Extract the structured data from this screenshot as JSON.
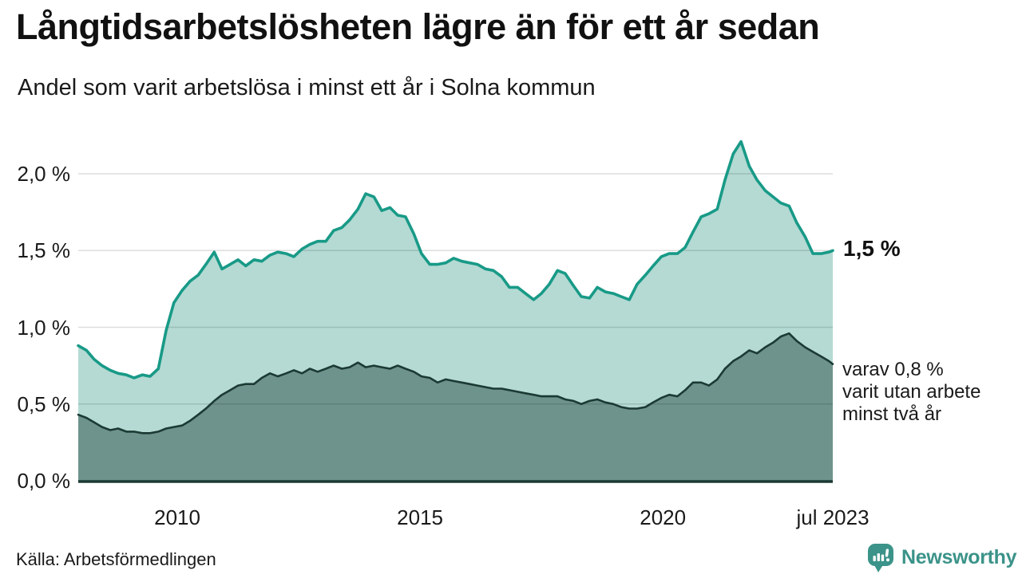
{
  "header": {
    "title": "Långtidsarbetslösheten lägre än för ett år sedan",
    "subtitle": "Andel som varit arbetslösa i minst ett år i Solna kommun"
  },
  "chart_data": {
    "type": "area",
    "title": "Långtidsarbetslösheten lägre än för ett år sedan",
    "subtitle": "Andel som varit arbetslösa i minst ett år i Solna kommun",
    "grid": "horizontal-on",
    "legend_position": "none",
    "x_axis": {
      "range": [
        2007.96,
        2023.5
      ],
      "ticks": [
        {
          "value": 2010,
          "label": "2010"
        },
        {
          "value": 2015,
          "label": "2015"
        },
        {
          "value": 2020,
          "label": "2020"
        },
        {
          "value": 2023.5,
          "label": "jul 2023"
        }
      ]
    },
    "y_axis": {
      "range": [
        0,
        2.3
      ],
      "unit": "%",
      "ticks": [
        {
          "value": 0.0,
          "label": "0,0 %"
        },
        {
          "value": 0.5,
          "label": "0,5 %"
        },
        {
          "value": 1.0,
          "label": "1,0 %"
        },
        {
          "value": 1.5,
          "label": "1,5 %"
        },
        {
          "value": 2.0,
          "label": "2,0 %"
        }
      ]
    },
    "x": [
      2007.96,
      2008.13,
      2008.29,
      2008.45,
      2008.62,
      2008.78,
      2008.95,
      2009.11,
      2009.28,
      2009.44,
      2009.61,
      2009.77,
      2009.93,
      2010.1,
      2010.26,
      2010.43,
      2010.59,
      2010.76,
      2010.92,
      2011.09,
      2011.25,
      2011.41,
      2011.58,
      2011.74,
      2011.91,
      2012.07,
      2012.24,
      2012.4,
      2012.57,
      2012.73,
      2012.89,
      2013.06,
      2013.22,
      2013.39,
      2013.55,
      2013.72,
      2013.88,
      2014.05,
      2014.21,
      2014.38,
      2014.54,
      2014.7,
      2014.87,
      2015.03,
      2015.2,
      2015.36,
      2015.53,
      2015.69,
      2015.86,
      2016.02,
      2016.18,
      2016.35,
      2016.51,
      2016.68,
      2016.84,
      2017.01,
      2017.17,
      2017.34,
      2017.5,
      2017.66,
      2017.83,
      2017.99,
      2018.16,
      2018.32,
      2018.49,
      2018.65,
      2018.82,
      2018.98,
      2019.14,
      2019.31,
      2019.47,
      2019.64,
      2019.8,
      2019.97,
      2020.13,
      2020.3,
      2020.46,
      2020.62,
      2020.79,
      2020.95,
      2021.12,
      2021.28,
      2021.45,
      2021.61,
      2021.78,
      2021.94,
      2022.11,
      2022.27,
      2022.43,
      2022.6,
      2022.76,
      2022.93,
      2023.09,
      2023.26,
      2023.42,
      2023.5
    ],
    "series": [
      {
        "name": "Andel arbetslösa minst ett år",
        "values": [
          0.88,
          0.85,
          0.79,
          0.75,
          0.72,
          0.7,
          0.69,
          0.67,
          0.69,
          0.68,
          0.73,
          0.98,
          1.16,
          1.24,
          1.3,
          1.34,
          1.41,
          1.49,
          1.38,
          1.41,
          1.44,
          1.4,
          1.44,
          1.43,
          1.47,
          1.49,
          1.48,
          1.46,
          1.51,
          1.54,
          1.56,
          1.56,
          1.63,
          1.65,
          1.7,
          1.77,
          1.87,
          1.85,
          1.76,
          1.78,
          1.73,
          1.72,
          1.61,
          1.48,
          1.41,
          1.41,
          1.42,
          1.45,
          1.43,
          1.42,
          1.41,
          1.38,
          1.37,
          1.33,
          1.26,
          1.26,
          1.22,
          1.18,
          1.22,
          1.28,
          1.37,
          1.35,
          1.27,
          1.2,
          1.19,
          1.26,
          1.23,
          1.22,
          1.2,
          1.18,
          1.28,
          1.34,
          1.4,
          1.46,
          1.48,
          1.48,
          1.52,
          1.62,
          1.72,
          1.74,
          1.77,
          1.96,
          2.13,
          2.21,
          2.05,
          1.96,
          1.89,
          1.85,
          1.81,
          1.79,
          1.68,
          1.59,
          1.48,
          1.48,
          1.49,
          1.5
        ]
      },
      {
        "name": "varav utan arbete minst två år",
        "values": [
          0.43,
          0.41,
          0.38,
          0.35,
          0.33,
          0.34,
          0.32,
          0.32,
          0.31,
          0.31,
          0.32,
          0.34,
          0.35,
          0.36,
          0.39,
          0.43,
          0.47,
          0.52,
          0.56,
          0.59,
          0.62,
          0.63,
          0.63,
          0.67,
          0.7,
          0.68,
          0.7,
          0.72,
          0.7,
          0.73,
          0.71,
          0.73,
          0.75,
          0.73,
          0.74,
          0.77,
          0.74,
          0.75,
          0.74,
          0.73,
          0.75,
          0.73,
          0.71,
          0.68,
          0.67,
          0.64,
          0.66,
          0.65,
          0.64,
          0.63,
          0.62,
          0.61,
          0.6,
          0.6,
          0.59,
          0.58,
          0.57,
          0.56,
          0.55,
          0.55,
          0.55,
          0.53,
          0.52,
          0.5,
          0.52,
          0.53,
          0.51,
          0.5,
          0.48,
          0.47,
          0.47,
          0.48,
          0.51,
          0.54,
          0.56,
          0.55,
          0.59,
          0.64,
          0.64,
          0.62,
          0.66,
          0.73,
          0.78,
          0.81,
          0.85,
          0.83,
          0.87,
          0.9,
          0.94,
          0.96,
          0.91,
          0.87,
          0.84,
          0.81,
          0.78,
          0.76
        ]
      }
    ],
    "annotations": {
      "latest_value_label": "1,5 %",
      "note": "varav 0,8 %\nvarit utan arbete\nminst två år"
    },
    "colors": {
      "line_1yr": "#189a87",
      "fill_1yr": "#b4dad3",
      "line_2yr": "#1b3a34",
      "fill_2yr": "#6e938c",
      "grid": "rgba(0,0,0,0.13)",
      "axis": "#1b3a34",
      "brand": "#3b9389"
    }
  },
  "footer": {
    "source": "Källa: Arbetsförmedlingen",
    "brand": "Newsworthy"
  }
}
